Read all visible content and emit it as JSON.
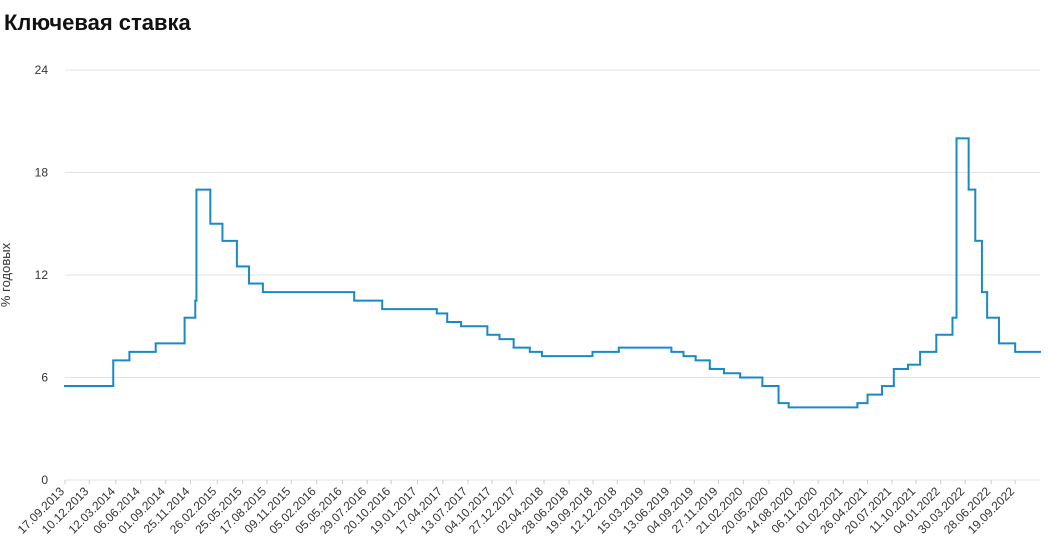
{
  "chart_data": {
    "type": "line",
    "step": true,
    "title": "Ключевая ставка",
    "ylabel": "% годовых",
    "series": [
      {
        "color": "#1a8ac6",
        "x": [
          "17.09.2013",
          "03.03.2014",
          "28.04.2014",
          "28.07.2014",
          "05.11.2014",
          "12.12.2014",
          "16.12.2014",
          "02.02.2015",
          "16.03.2015",
          "05.05.2015",
          "16.06.2015",
          "03.08.2015",
          "14.06.2016",
          "19.09.2016",
          "27.03.2017",
          "02.05.2017",
          "19.06.2017",
          "18.09.2017",
          "30.10.2017",
          "18.12.2017",
          "12.02.2018",
          "26.03.2018",
          "17.09.2018",
          "17.12.2018",
          "17.06.2019",
          "29.07.2019",
          "09.09.2019",
          "28.10.2019",
          "16.12.2019",
          "10.02.2020",
          "27.04.2020",
          "22.06.2020",
          "27.07.2020",
          "22.03.2021",
          "26.04.2021",
          "15.06.2021",
          "26.07.2021",
          "13.09.2021",
          "25.10.2021",
          "20.12.2021",
          "14.02.2022",
          "28.02.2022",
          "11.04.2022",
          "04.05.2022",
          "27.05.2022",
          "14.06.2022",
          "25.07.2022",
          "19.09.2022"
        ],
        "values": [
          5.5,
          7,
          7.5,
          8,
          9.5,
          10.5,
          17,
          15,
          14,
          12.5,
          11.5,
          11,
          10.5,
          10,
          9.75,
          9.25,
          9,
          8.5,
          8.25,
          7.75,
          7.5,
          7.25,
          7.5,
          7.75,
          7.5,
          7.25,
          7,
          6.5,
          6.25,
          6,
          5.5,
          4.5,
          4.25,
          4.5,
          5,
          5.5,
          6.5,
          6.75,
          7.5,
          8.5,
          9.5,
          20,
          17,
          14,
          11,
          9.5,
          8,
          7.5
        ]
      }
    ],
    "xlim": [
      "17.09.2013",
      "14.12.2022"
    ],
    "xticks": [
      "17.09.2013",
      "10.12.2013",
      "12.03.2014",
      "06.06.2014",
      "01.09.2014",
      "25.11.2014",
      "26.02.2015",
      "25.05.2015",
      "17.08.2015",
      "09.11.2015",
      "05.02.2016",
      "05.05.2016",
      "29.07.2016",
      "20.10.2016",
      "19.01.2017",
      "17.04.2017",
      "13.07.2017",
      "04.10.2017",
      "27.12.2017",
      "02.04.2018",
      "28.06.2018",
      "19.09.2018",
      "12.12.2018",
      "15.03.2019",
      "13.06.2019",
      "04.09.2019",
      "27.11.2019",
      "21.02.2020",
      "20.05.2020",
      "14.08.2020",
      "06.11.2020",
      "01.02.2021",
      "26.04.2021",
      "20.07.2021",
      "11.10.2021",
      "04.01.2022",
      "30.03.2022",
      "28.06.2022",
      "19.09.2022"
    ],
    "ylim": [
      0,
      24
    ],
    "yticks": [
      0,
      6,
      12,
      18,
      24
    ],
    "grid": true
  }
}
